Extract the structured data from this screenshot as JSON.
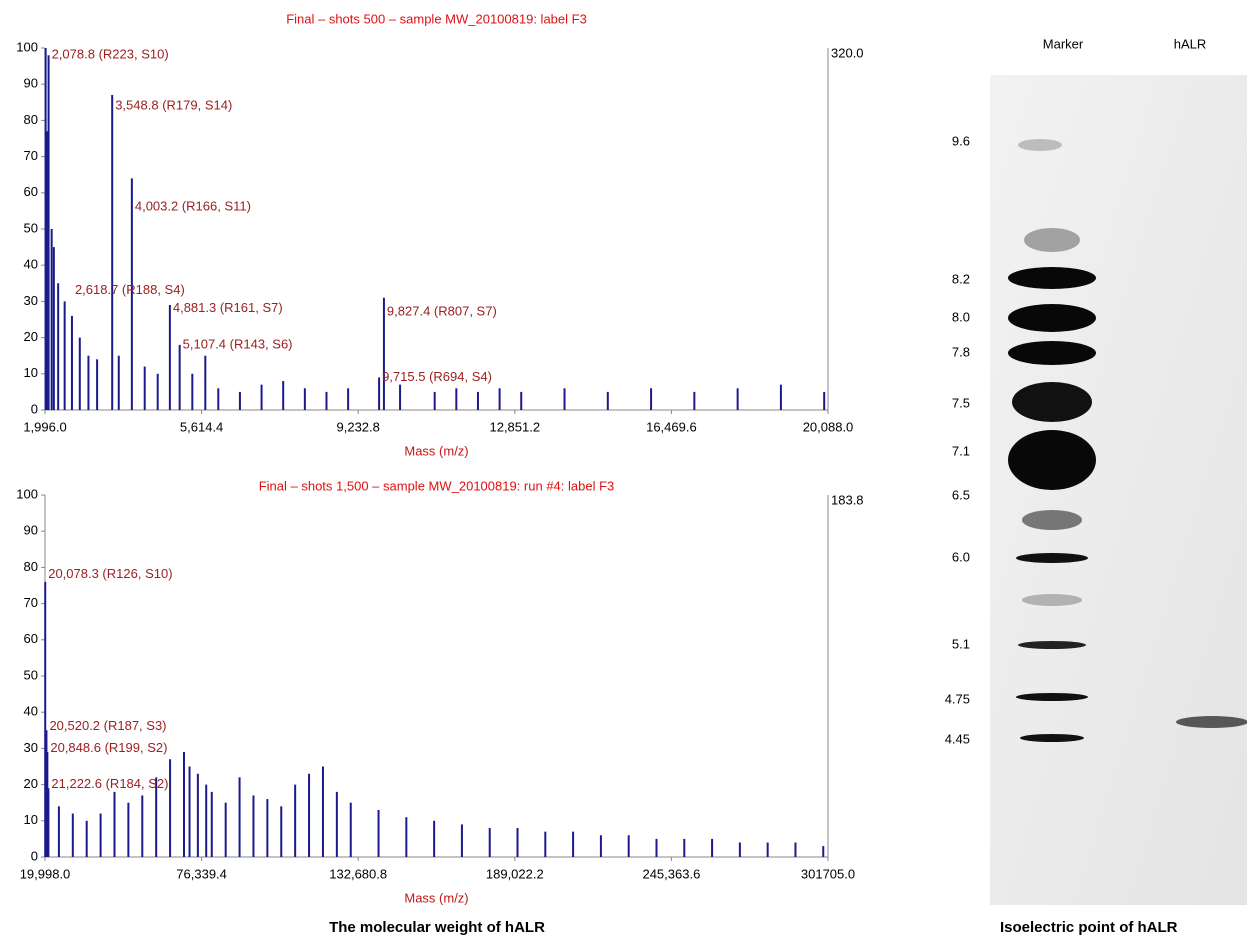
{
  "chart_data": [
    {
      "type": "spectrum",
      "title": "Final – shots 500 – sample MW_20100819: label F3",
      "xlabel": "Mass (m/z)",
      "max_intensity_label": "320.0",
      "color": "#1a1a8c",
      "xlim": [
        1996.0,
        20088.0
      ],
      "xticks": [
        {
          "value": 1996.0,
          "label": "1,996.0"
        },
        {
          "value": 5614.4,
          "label": "5,614.4"
        },
        {
          "value": 9232.8,
          "label": "9,232.8"
        },
        {
          "value": 12851.2,
          "label": "12,851.2"
        },
        {
          "value": 16469.6,
          "label": "16,469.6"
        },
        {
          "value": 20088.0,
          "label": "20,088.0"
        }
      ],
      "ylim": [
        0,
        100
      ],
      "yticks": [
        0,
        10,
        20,
        30,
        40,
        50,
        60,
        70,
        80,
        90,
        100
      ],
      "x": [
        2010,
        2040,
        2078.8,
        2150,
        2200,
        2300,
        2450,
        2618.7,
        2800,
        3000,
        3200,
        3548.8,
        3700,
        4003.2,
        4300,
        4600,
        4881.3,
        5107.4,
        5400,
        5700,
        6000,
        6500,
        7000,
        7500,
        8000,
        8500,
        9000,
        9715.5,
        9827.4,
        10200,
        11000,
        11500,
        12000,
        12500,
        13000,
        14000,
        15000,
        16000,
        17000,
        18000,
        19000,
        20000
      ],
      "values": [
        100,
        77,
        98,
        50,
        45,
        35,
        30,
        26,
        20,
        15,
        14,
        87,
        15,
        64,
        12,
        10,
        29,
        18,
        10,
        15,
        6,
        5,
        7,
        8,
        6,
        5,
        6,
        9,
        31,
        7,
        5,
        6,
        5,
        6,
        5,
        6,
        5,
        6,
        5,
        6,
        7,
        5
      ],
      "annotations": [
        {
          "x": 2078.8,
          "y": 98,
          "label": "2,078.8 (R223, S10)"
        },
        {
          "x": 3548.8,
          "y": 84,
          "label": "3,548.8 (R179, S14)"
        },
        {
          "x": 4003.2,
          "y": 56,
          "label": "4,003.2 (R166, S11)"
        },
        {
          "x": 2618.7,
          "y": 33,
          "label": "2,618.7 (R188, S4)"
        },
        {
          "x": 4881.3,
          "y": 28,
          "label": "4,881.3 (R161, S7)"
        },
        {
          "x": 5107.4,
          "y": 18,
          "label": "5,107.4 (R143, S6)"
        },
        {
          "x": 9827.4,
          "y": 27,
          "label": "9,827.4 (R807, S7)"
        },
        {
          "x": 9715.5,
          "y": 9,
          "label": "9,715.5 (R694, S4)"
        }
      ]
    },
    {
      "type": "spectrum",
      "title": "Final – shots 1,500 – sample MW_20100819: run #4: label F3",
      "xlabel": "Mass (m/z)",
      "max_intensity_label": "183.8",
      "color": "#1a1a8c",
      "xlim": [
        19998.0,
        301705.0
      ],
      "xticks": [
        {
          "value": 19998.0,
          "label": "19,998.0"
        },
        {
          "value": 76339.4,
          "label": "76,339.4"
        },
        {
          "value": 132680.8,
          "label": "132,680.8"
        },
        {
          "value": 189022.2,
          "label": "189,022.2"
        },
        {
          "value": 245363.6,
          "label": "245,363.6"
        },
        {
          "value": 301705.0,
          "label": "301705.0"
        }
      ],
      "ylim": [
        0,
        100
      ],
      "yticks": [
        0,
        10,
        20,
        30,
        40,
        50,
        60,
        70,
        80,
        90,
        100
      ],
      "x": [
        20078.3,
        20520.2,
        20848.6,
        21222.6,
        25000,
        30000,
        35000,
        40000,
        45000,
        50000,
        55000,
        60000,
        65000,
        70000,
        72000,
        75000,
        78000,
        80000,
        85000,
        90000,
        95000,
        100000,
        105000,
        110000,
        115000,
        120000,
        125000,
        130000,
        140000,
        150000,
        160000,
        170000,
        180000,
        190000,
        200000,
        210000,
        220000,
        230000,
        240000,
        250000,
        260000,
        270000,
        280000,
        290000,
        300000
      ],
      "values": [
        76,
        35,
        29,
        19,
        14,
        12,
        10,
        12,
        18,
        15,
        17,
        22,
        27,
        29,
        25,
        23,
        20,
        18,
        15,
        22,
        17,
        16,
        14,
        20,
        23,
        25,
        18,
        15,
        13,
        11,
        10,
        9,
        8,
        8,
        7,
        7,
        6,
        6,
        5,
        5,
        5,
        4,
        4,
        4,
        3
      ],
      "annotations": [
        {
          "x": 20078.3,
          "y": 78,
          "label": "20,078.3 (R126, S10)"
        },
        {
          "x": 20520.2,
          "y": 36,
          "label": "20,520.2 (R187, S3)"
        },
        {
          "x": 20848.6,
          "y": 30,
          "label": "20,848.6 (R199, S2)"
        },
        {
          "x": 21222.6,
          "y": 20,
          "label": "21,222.6 (R184, S2)"
        }
      ]
    }
  ],
  "left_caption": "The molecular weight of hALR",
  "gel": {
    "lanes": [
      "Marker",
      "hALR"
    ],
    "ph_labels": [
      "9.6",
      "8.2",
      "8.0",
      "7.8",
      "7.5",
      "7.1",
      "6.5",
      "6.0",
      "5.1",
      "4.75",
      "4.45"
    ],
    "caption": "Isoelectric point of hALR"
  }
}
